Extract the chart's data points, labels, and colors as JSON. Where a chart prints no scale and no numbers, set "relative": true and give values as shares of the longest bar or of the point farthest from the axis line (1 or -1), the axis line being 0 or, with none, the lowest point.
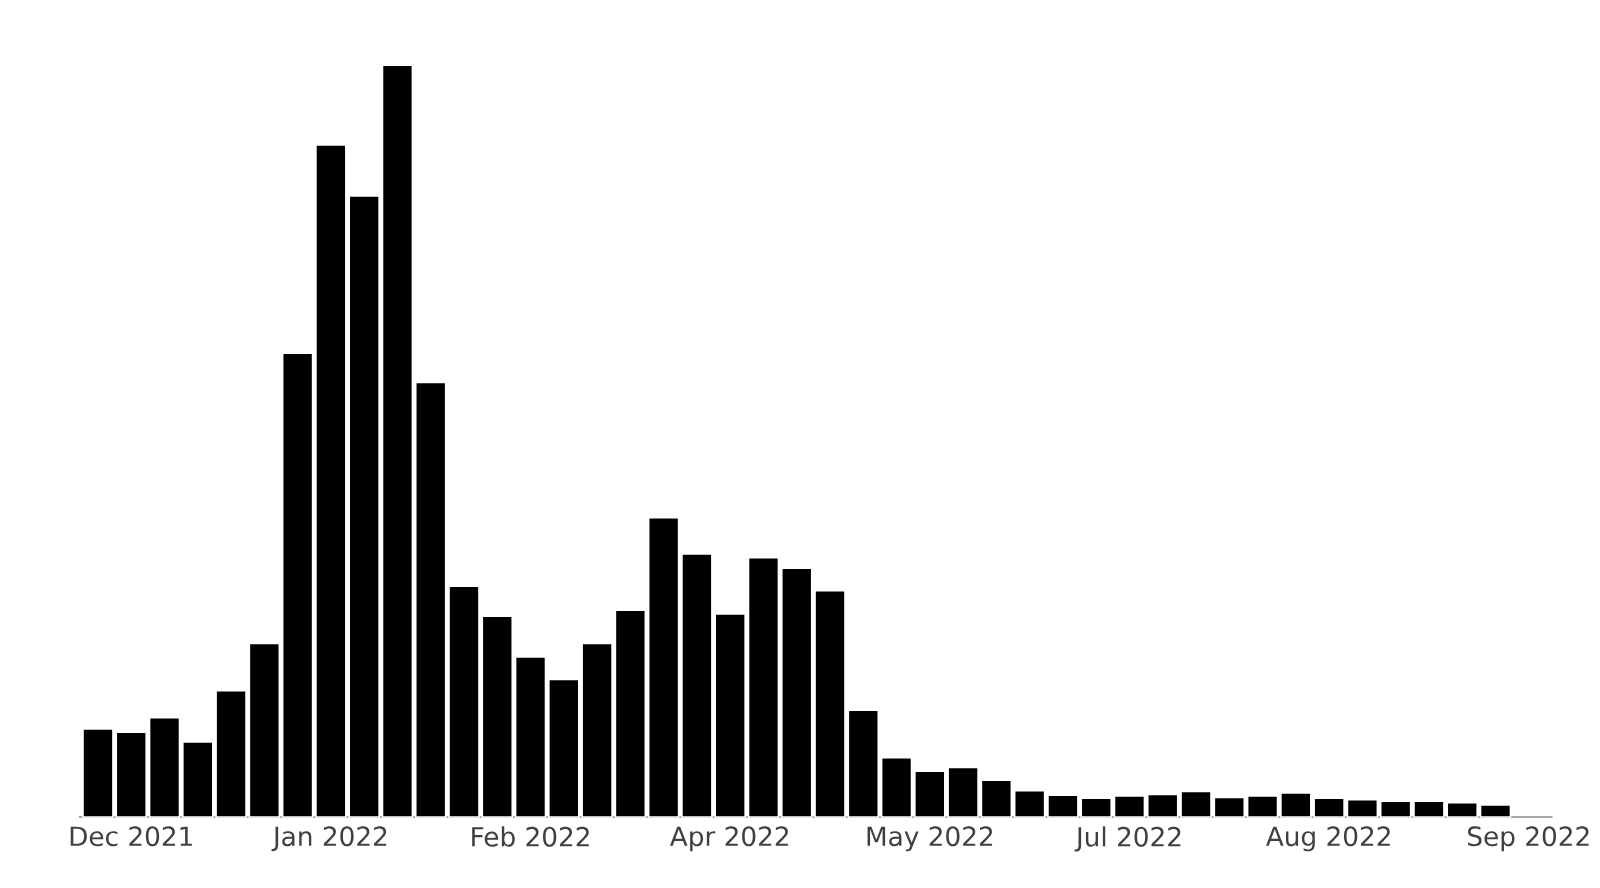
{
  "chart_data": {
    "type": "bar",
    "relative": true,
    "color": "#000000",
    "x": [
      "2021-11-29",
      "2021-12-06",
      "2021-12-13",
      "2021-12-20",
      "2021-12-27",
      "2022-01-03",
      "2022-01-10",
      "2022-01-17",
      "2022-01-24",
      "2022-01-31",
      "2022-02-07",
      "2022-02-14",
      "2022-02-21",
      "2022-02-28",
      "2022-03-07",
      "2022-03-14",
      "2022-03-21",
      "2022-03-28",
      "2022-04-04",
      "2022-04-11",
      "2022-04-18",
      "2022-04-25",
      "2022-05-02",
      "2022-05-09",
      "2022-05-16",
      "2022-05-23",
      "2022-05-30",
      "2022-06-06",
      "2022-06-13",
      "2022-06-20",
      "2022-06-27",
      "2022-07-04",
      "2022-07-11",
      "2022-07-18",
      "2022-07-25",
      "2022-08-01",
      "2022-08-08",
      "2022-08-15",
      "2022-08-22",
      "2022-08-29",
      "2022-09-05",
      "2022-09-12",
      "2022-09-19"
    ],
    "values": [
      0.117,
      0.113,
      0.132,
      0.1,
      0.168,
      0.231,
      0.617,
      0.894,
      0.826,
      1,
      0.578,
      0.307,
      0.267,
      0.213,
      0.183,
      0.231,
      0.275,
      0.398,
      0.35,
      0.27,
      0.345,
      0.331,
      0.301,
      0.142,
      0.079,
      0.061,
      0.066,
      0.049,
      0.035,
      0.029,
      0.025,
      0.028,
      0.03,
      0.034,
      0.026,
      0.028,
      0.032,
      0.025,
      0.023,
      0.021,
      0.021,
      0.019,
      0.016
    ],
    "xlim": [
      "2021-11-25",
      "2022-10-01"
    ],
    "xticks": [
      {
        "value": "2021-12-06",
        "label": "Dec 2021"
      },
      {
        "value": "2022-01-17",
        "label": "Jan 2022"
      },
      {
        "value": "2022-02-28",
        "label": "Feb 2022"
      },
      {
        "value": "2022-04-11",
        "label": "Apr 2022"
      },
      {
        "value": "2022-05-23",
        "label": "May 2022"
      },
      {
        "value": "2022-07-04",
        "label": "Jul 2022"
      },
      {
        "value": "2022-08-15",
        "label": "Aug 2022"
      },
      {
        "value": "2022-09-26",
        "label": "Sep 2022"
      }
    ]
  }
}
